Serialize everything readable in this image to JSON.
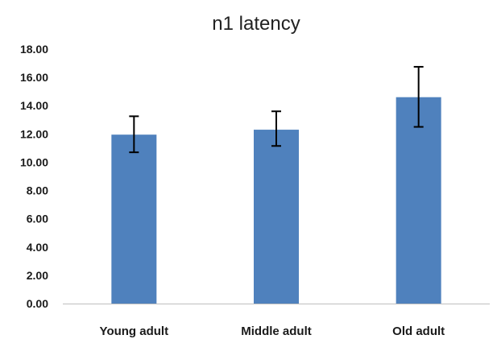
{
  "chart_data": {
    "type": "bar",
    "title": "n1 latency",
    "categories": [
      "Young adult",
      "Middle adult",
      "Old adult"
    ],
    "values": [
      11.95,
      12.3,
      14.6
    ],
    "error_bars": [
      {
        "low": 10.7,
        "high": 13.25
      },
      {
        "low": 11.15,
        "high": 13.6
      },
      {
        "low": 12.5,
        "high": 16.75
      }
    ],
    "ylim": [
      0,
      18
    ],
    "yticks": [
      "0.00",
      "2.00",
      "4.00",
      "6.00",
      "8.00",
      "10.00",
      "12.00",
      "14.00",
      "16.00",
      "18.00"
    ],
    "xlabel": "",
    "ylabel": "",
    "grid": false,
    "bar_color": "#4f81bd",
    "error_bar_color": "#000000",
    "axis_color": "#bfbfbf"
  }
}
